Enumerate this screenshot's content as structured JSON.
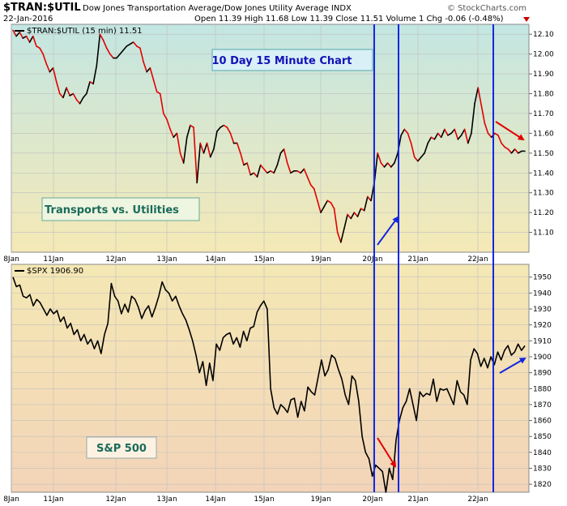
{
  "header": {
    "symbol": "$TRAN:$UTIL",
    "description": "Dow Jones Transportation Average/Dow Jones Utility Average INDX",
    "watermark": "© StockCharts.com",
    "date": "22-Jan-2016",
    "ohlc": "Open 11.39  High 11.68  Low 11.39  Close 11.51  Volume 1  Chg -0.06 (-0.48%)"
  },
  "chart_data": [
    {
      "type": "line",
      "legend": "$TRAN:$UTIL (15 min) 11.51",
      "annotation_title": "10 Day 15 Minute Chart",
      "annotation_label": "Transports vs. Utilities",
      "x_labels": [
        "8Jan",
        "11Jan",
        "12Jan",
        "13Jan",
        "14Jan",
        "15Jan",
        "19Jan",
        "20Jan",
        "21Jan",
        "22Jan"
      ],
      "ylim": [
        11.0,
        12.15
      ],
      "y_ticks": [
        "12.10",
        "12.00",
        "11.90",
        "11.80",
        "11.70",
        "11.60",
        "11.50",
        "11.40",
        "11.30",
        "11.20",
        "11.10"
      ],
      "colors": {
        "up": "#000000",
        "down": "#e00000",
        "background_top": "#c3e6e2",
        "background_bottom": "#f5e9b6"
      },
      "series": [
        {
          "values": [
            12.12,
            12.09,
            12.11,
            12.08,
            12.09,
            12.06,
            12.09,
            12.04,
            12.03,
            12.0,
            11.95,
            11.91,
            11.93,
            11.86,
            11.8,
            11.78,
            11.83,
            11.79,
            11.8,
            11.77,
            11.75,
            11.78,
            11.8,
            11.86,
            11.85,
            11.94,
            12.1,
            12.07,
            12.03,
            12.0,
            11.98,
            11.98,
            12.0,
            12.02,
            12.04,
            12.05,
            12.06,
            12.04,
            12.03,
            11.96,
            11.91,
            11.93,
            11.87,
            11.81,
            11.8,
            11.7,
            11.67,
            11.62,
            11.58,
            11.6,
            11.5,
            11.45,
            11.58,
            11.64,
            11.63,
            11.35,
            11.55,
            11.5,
            11.55,
            11.48,
            11.52,
            11.61,
            11.63,
            11.64,
            11.63,
            11.6,
            11.55,
            11.55,
            11.5,
            11.44,
            11.45,
            11.39,
            11.4,
            11.38,
            11.44,
            11.42,
            11.4,
            11.41,
            11.4,
            11.44,
            11.5,
            11.52,
            11.45,
            11.4,
            11.41,
            11.41,
            11.4,
            11.42,
            11.38,
            11.34,
            11.32,
            11.26,
            11.2,
            11.23,
            11.26,
            11.25,
            11.22,
            11.1,
            11.05,
            11.12,
            11.19,
            11.17,
            11.2,
            11.18,
            11.22,
            11.21,
            11.28,
            11.26,
            11.35,
            11.5,
            11.45,
            11.43,
            11.45,
            11.43,
            11.45,
            11.5,
            11.59,
            11.62,
            11.6,
            11.55,
            11.48,
            11.46,
            11.48,
            11.5,
            11.55,
            11.58,
            11.57,
            11.6,
            11.58,
            11.62,
            11.59,
            11.6,
            11.62,
            11.57,
            11.59,
            11.62,
            11.55,
            11.6,
            11.75,
            11.83,
            11.74,
            11.65,
            11.6,
            11.58,
            11.6,
            11.59,
            11.55,
            11.53,
            11.52,
            11.5,
            11.52,
            11.5,
            11.51,
            11.51
          ]
        }
      ]
    },
    {
      "type": "line",
      "legend": "$SPX 1906.90",
      "annotation_label": "S&P 500",
      "x_labels": [
        "8Jan",
        "11Jan",
        "12Jan",
        "13Jan",
        "14Jan",
        "15Jan",
        "19Jan",
        "20Jan",
        "21Jan",
        "22Jan"
      ],
      "ylim": [
        1815,
        1958
      ],
      "y_ticks": [
        "1950",
        "1940",
        "1930",
        "1920",
        "1910",
        "1900",
        "1890",
        "1880",
        "1870",
        "1860",
        "1850",
        "1840",
        "1830",
        "1820"
      ],
      "colors": {
        "line": "#000000",
        "background_top": "#f4e8b4",
        "background_bottom": "#f3d4b8"
      },
      "series": [
        {
          "values": [
            1950,
            1944,
            1945,
            1938,
            1937,
            1939,
            1932,
            1936,
            1934,
            1930,
            1926,
            1930,
            1927,
            1929,
            1922,
            1925,
            1918,
            1921,
            1914,
            1917,
            1910,
            1914,
            1908,
            1911,
            1905,
            1910,
            1902,
            1914,
            1921,
            1946,
            1938,
            1935,
            1927,
            1933,
            1928,
            1938,
            1936,
            1931,
            1924,
            1929,
            1932,
            1925,
            1931,
            1938,
            1947,
            1942,
            1940,
            1935,
            1938,
            1932,
            1927,
            1923,
            1917,
            1910,
            1901,
            1890,
            1897,
            1882,
            1896,
            1885,
            1908,
            1904,
            1912,
            1914,
            1915,
            1908,
            1912,
            1906,
            1916,
            1910,
            1918,
            1919,
            1928,
            1932,
            1935,
            1930,
            1880,
            1868,
            1864,
            1870,
            1868,
            1865,
            1873,
            1874,
            1862,
            1872,
            1866,
            1881,
            1878,
            1876,
            1887,
            1898,
            1888,
            1892,
            1901,
            1899,
            1892,
            1886,
            1876,
            1870,
            1888,
            1885,
            1872,
            1850,
            1840,
            1836,
            1825,
            1832,
            1830,
            1828,
            1815,
            1830,
            1823,
            1848,
            1860,
            1868,
            1872,
            1880,
            1870,
            1860,
            1878,
            1875,
            1877,
            1876,
            1886,
            1872,
            1880,
            1879,
            1880,
            1875,
            1870,
            1885,
            1878,
            1876,
            1870,
            1898,
            1905,
            1902,
            1894,
            1899,
            1893,
            1900,
            1895,
            1903,
            1898,
            1904,
            1907,
            1901,
            1903,
            1908,
            1904,
            1906.9
          ]
        }
      ]
    }
  ]
}
